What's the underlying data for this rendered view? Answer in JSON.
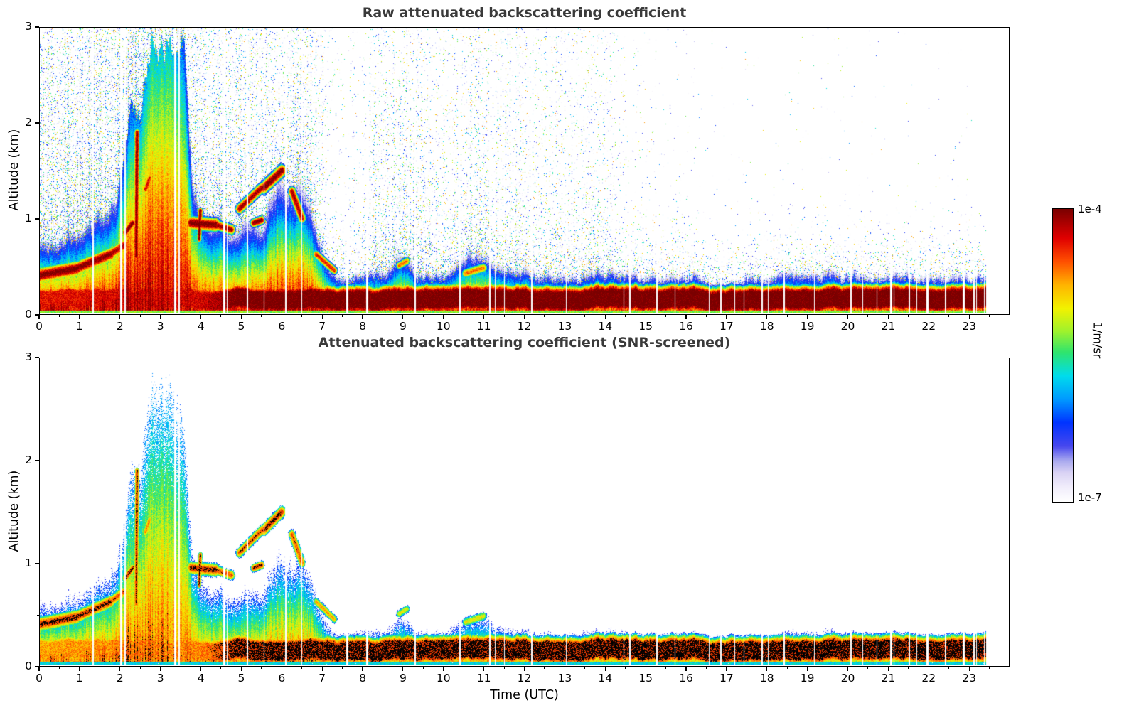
{
  "figure": {
    "background": "#ffffff"
  },
  "chart_data": {
    "type": "heatmap",
    "value_scale": "log10",
    "value_min": "1e-7",
    "value_max": "1e-4",
    "time_end_hours": 23.45,
    "seed": 1337,
    "axes": {
      "x_label": "Time (UTC)",
      "y_label": "Altitude (km)",
      "x_range": [
        0,
        24
      ],
      "y_range": [
        0,
        3
      ],
      "x_ticks": [
        0,
        1,
        2,
        3,
        4,
        5,
        6,
        7,
        8,
        9,
        10,
        11,
        12,
        13,
        14,
        15,
        16,
        17,
        18,
        19,
        20,
        21,
        22,
        23
      ],
      "y_ticks": [
        0,
        1,
        2,
        3
      ],
      "x_minor_step": 0.5,
      "y_minor_step": 0.5
    },
    "colorbar": {
      "unit": "1/m/sr",
      "max_label": "1e-4",
      "min_label": "1e-7"
    },
    "charts": [
      {
        "title": "Raw attenuated backscattering coefficient",
        "variant": "raw"
      },
      {
        "title": "Attenuated backscattering coefficient (SNR-screened)",
        "variant": "screened"
      }
    ],
    "colormap_stops": [
      [
        0.0,
        "#ffffff"
      ],
      [
        0.05,
        "#f1edfb"
      ],
      [
        0.1,
        "#d9d2f4"
      ],
      [
        0.14,
        "#a9a9ee"
      ],
      [
        0.19,
        "#4747ee"
      ],
      [
        0.27,
        "#0033ff"
      ],
      [
        0.35,
        "#0099ff"
      ],
      [
        0.43,
        "#00dcec"
      ],
      [
        0.51,
        "#2ee46e"
      ],
      [
        0.58,
        "#9cf22e"
      ],
      [
        0.66,
        "#f2f200"
      ],
      [
        0.74,
        "#ffb400"
      ],
      [
        0.82,
        "#ff5000"
      ],
      [
        0.9,
        "#e00000"
      ],
      [
        1.0,
        "#7a0000"
      ]
    ],
    "model": {
      "layer_top_km": [
        [
          0,
          0.8
        ],
        [
          0.5,
          0.75
        ],
        [
          1.0,
          0.85
        ],
        [
          1.5,
          1.0
        ],
        [
          1.9,
          1.15
        ],
        [
          2.1,
          1.6
        ],
        [
          2.3,
          2.3
        ],
        [
          2.5,
          2.0
        ],
        [
          2.7,
          2.5
        ],
        [
          2.9,
          3.0
        ],
        [
          3.3,
          3.0
        ],
        [
          3.5,
          2.9
        ],
        [
          3.6,
          2.6
        ],
        [
          3.7,
          1.7
        ],
        [
          3.8,
          1.35
        ],
        [
          4.0,
          1.2
        ],
        [
          4.2,
          1.1
        ],
        [
          4.5,
          1.15
        ],
        [
          4.7,
          0.9
        ],
        [
          4.9,
          0.8
        ],
        [
          5.1,
          1.0
        ],
        [
          5.3,
          1.05
        ],
        [
          5.5,
          1.0
        ],
        [
          5.7,
          1.3
        ],
        [
          5.9,
          1.6
        ],
        [
          6.1,
          1.5
        ],
        [
          6.3,
          1.4
        ],
        [
          6.5,
          1.5
        ],
        [
          6.7,
          1.15
        ],
        [
          6.9,
          0.85
        ],
        [
          7.1,
          0.6
        ],
        [
          7.3,
          0.48
        ],
        [
          7.6,
          0.4
        ],
        [
          8.0,
          0.45
        ],
        [
          8.3,
          0.52
        ],
        [
          8.6,
          0.45
        ],
        [
          8.9,
          0.62
        ],
        [
          9.1,
          0.6
        ],
        [
          9.4,
          0.45
        ],
        [
          9.7,
          0.42
        ],
        [
          10.0,
          0.42
        ],
        [
          10.3,
          0.5
        ],
        [
          10.6,
          0.6
        ],
        [
          10.9,
          0.65
        ],
        [
          11.1,
          0.58
        ],
        [
          11.4,
          0.5
        ],
        [
          11.8,
          0.48
        ],
        [
          12.3,
          0.45
        ],
        [
          13,
          0.44
        ],
        [
          14,
          0.44
        ],
        [
          15,
          0.42
        ],
        [
          16,
          0.4
        ],
        [
          17,
          0.38
        ],
        [
          17.5,
          0.4
        ],
        [
          18,
          0.42
        ],
        [
          18.6,
          0.46
        ],
        [
          19.2,
          0.46
        ],
        [
          19.8,
          0.42
        ],
        [
          20.5,
          0.4
        ],
        [
          21.5,
          0.4
        ],
        [
          22.5,
          0.4
        ],
        [
          23.45,
          0.4
        ]
      ],
      "layer_base_log10": [
        [
          0,
          -4.2
        ],
        [
          2,
          -4.15
        ],
        [
          3,
          -4.25
        ],
        [
          3.6,
          -4.2
        ],
        [
          4.5,
          -4.3
        ],
        [
          5.5,
          -4.3
        ],
        [
          6.5,
          -4.25
        ],
        [
          7.2,
          -4.35
        ],
        [
          8,
          -4.4
        ],
        [
          9,
          -4.35
        ],
        [
          10,
          -4.4
        ],
        [
          11,
          -4.35
        ],
        [
          12,
          -4.45
        ],
        [
          14,
          -4.5
        ],
        [
          16,
          -4.55
        ],
        [
          18,
          -4.5
        ],
        [
          20,
          -4.55
        ],
        [
          23.45,
          -4.55
        ]
      ],
      "plume_boost": [
        [
          0,
          0.2
        ],
        [
          1.0,
          0.2
        ],
        [
          1.9,
          0.3
        ],
        [
          2.1,
          0.6
        ],
        [
          2.4,
          0.9
        ],
        [
          2.8,
          1.2
        ],
        [
          3.3,
          1.2
        ],
        [
          3.5,
          0.9
        ],
        [
          3.7,
          0.4
        ],
        [
          4.0,
          0.1
        ],
        [
          5,
          0
        ],
        [
          23.45,
          0
        ]
      ],
      "surface_core_log10": [
        [
          0,
          -4.35
        ],
        [
          1.5,
          -4.3
        ],
        [
          2,
          -4.25
        ],
        [
          3,
          -4.3
        ],
        [
          4,
          -4.25
        ],
        [
          4.6,
          -4.05
        ],
        [
          4.9,
          -3.95
        ],
        [
          23.45,
          -3.93
        ]
      ],
      "surface_core_center_km": 0.15,
      "surface_core_halfwidth_km": 0.075,
      "decay_exponent": 1.35,
      "streaks": [
        [
          0.0,
          0.4,
          0.9,
          0.47,
          0.09,
          -3.97
        ],
        [
          0.9,
          0.47,
          1.75,
          0.62,
          0.08,
          -4.0
        ],
        [
          1.75,
          0.62,
          2.1,
          0.72,
          0.07,
          -4.15
        ],
        [
          2.12,
          0.85,
          2.3,
          0.95,
          0.05,
          -3.96
        ],
        [
          2.39,
          0.6,
          2.41,
          1.9,
          0.04,
          -4.0
        ],
        [
          2.62,
          1.3,
          2.72,
          1.42,
          0.05,
          -4.3
        ],
        [
          3.75,
          0.95,
          4.35,
          0.93,
          0.08,
          -3.97
        ],
        [
          3.95,
          0.78,
          3.98,
          1.08,
          0.035,
          -3.97
        ],
        [
          4.35,
          0.93,
          4.75,
          0.88,
          0.06,
          -4.1
        ],
        [
          4.95,
          1.1,
          5.5,
          1.32,
          0.06,
          -4.1
        ],
        [
          5.3,
          0.95,
          5.5,
          0.98,
          0.05,
          -3.96
        ],
        [
          5.55,
          1.32,
          6.0,
          1.5,
          0.07,
          -3.97
        ],
        [
          6.25,
          1.28,
          6.5,
          1.0,
          0.06,
          -4.15
        ],
        [
          6.85,
          0.62,
          7.3,
          0.45,
          0.05,
          -4.35
        ],
        [
          8.9,
          0.5,
          9.1,
          0.55,
          0.05,
          -4.6
        ],
        [
          10.55,
          0.42,
          11.0,
          0.48,
          0.06,
          -4.6
        ]
      ],
      "noise_density": [
        [
          0,
          0.33
        ],
        [
          1,
          0.33
        ],
        [
          2,
          0.36
        ],
        [
          3,
          0.3
        ],
        [
          4,
          0.3
        ],
        [
          5,
          0.26
        ],
        [
          6,
          0.22
        ],
        [
          6.8,
          0.18
        ],
        [
          7.3,
          0.05
        ],
        [
          7.9,
          0.04
        ],
        [
          8.2,
          0.13
        ],
        [
          9,
          0.15
        ],
        [
          10,
          0.13
        ],
        [
          10.8,
          0.15
        ],
        [
          11.5,
          0.12
        ],
        [
          12.5,
          0.1
        ],
        [
          13.5,
          0.09
        ],
        [
          14.2,
          0.07
        ],
        [
          14.6,
          0.03
        ],
        [
          15.5,
          0.012
        ],
        [
          16.5,
          0.005
        ],
        [
          18,
          0.004
        ],
        [
          20,
          0.004
        ],
        [
          23.45,
          0.003
        ]
      ],
      "gaps": [
        [
          1.32,
          0.03
        ],
        [
          2.02,
          0.05
        ],
        [
          2.12,
          0.03
        ],
        [
          3.36,
          0.05
        ],
        [
          3.46,
          0.04
        ],
        [
          4.58,
          0.05
        ],
        [
          5.15,
          0.03
        ],
        [
          6.1,
          0.03
        ],
        [
          7.62,
          0.04
        ],
        [
          8.12,
          0.05
        ],
        [
          9.3,
          0.03
        ],
        [
          10.42,
          0.03
        ],
        [
          11.15,
          0.03
        ],
        [
          12.2,
          0.03
        ],
        [
          13.05,
          0.03
        ],
        [
          14.62,
          0.04
        ],
        [
          15.3,
          0.03
        ],
        [
          16.88,
          0.05
        ],
        [
          17.9,
          0.03
        ],
        [
          18.45,
          0.03
        ],
        [
          19.2,
          0.03
        ],
        [
          20.1,
          0.03
        ],
        [
          20.75,
          0.03
        ],
        [
          21.1,
          0.04
        ],
        [
          21.55,
          0.03
        ],
        [
          22.0,
          0.04
        ],
        [
          22.45,
          0.03
        ],
        [
          22.9,
          0.04
        ],
        [
          23.15,
          0.03
        ]
      ],
      "screened_offset": 0.4,
      "black_threshold_log10": -4.02,
      "snr_floor_base": -6.45,
      "snr_floor_per_km": 0.18
    }
  }
}
